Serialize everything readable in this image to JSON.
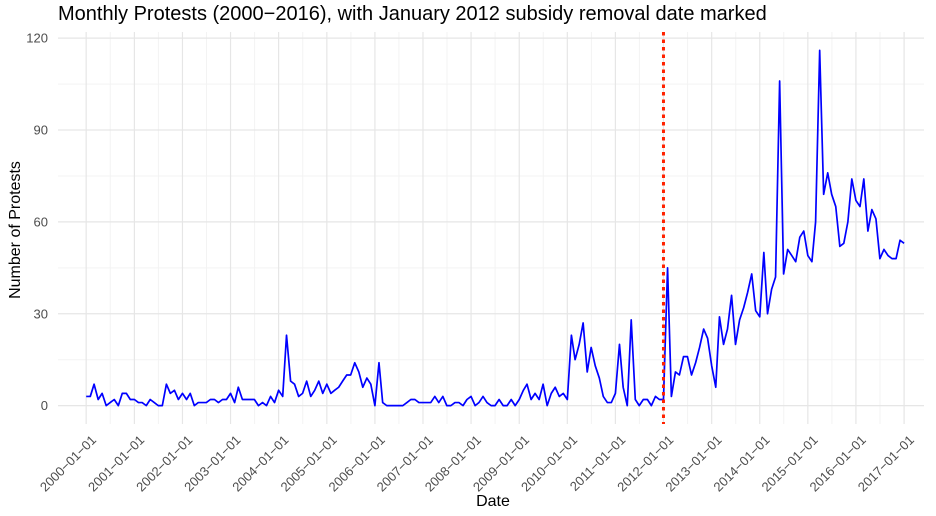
{
  "chart_data": {
    "type": "line",
    "title": "Monthly Protests (2000−2016), with January 2012 subsidy removal date marked",
    "xlabel": "Date",
    "ylabel": "Number of Protests",
    "x_ticks": [
      "2000−01−01",
      "2001−01−01",
      "2002−01−01",
      "2003−01−01",
      "2004−01−01",
      "2005−01−01",
      "2006−01−01",
      "2007−01−01",
      "2008−01−01",
      "2009−01−01",
      "2010−01−01",
      "2011−01−01",
      "2012−01−01",
      "2013−01−01",
      "2014−01−01",
      "2015−01−01",
      "2016−01−01",
      "2017−01−01"
    ],
    "y_ticks": [
      0,
      30,
      60,
      90,
      120
    ],
    "ylim": [
      -6,
      122
    ],
    "xlim": [
      "1999-06-01",
      "2017-06-01"
    ],
    "grid": true,
    "series": [
      {
        "color": "#0000ff",
        "points": [
          [
            "2000-01-01",
            3
          ],
          [
            "2000-02-01",
            3
          ],
          [
            "2000-03-01",
            7
          ],
          [
            "2000-04-01",
            2
          ],
          [
            "2000-05-01",
            4
          ],
          [
            "2000-06-01",
            0
          ],
          [
            "2000-07-01",
            1
          ],
          [
            "2000-08-01",
            2
          ],
          [
            "2000-09-01",
            0
          ],
          [
            "2000-10-01",
            4
          ],
          [
            "2000-11-01",
            4
          ],
          [
            "2000-12-01",
            2
          ],
          [
            "2001-01-01",
            2
          ],
          [
            "2001-02-01",
            1
          ],
          [
            "2001-03-01",
            1
          ],
          [
            "2001-04-01",
            0
          ],
          [
            "2001-05-01",
            2
          ],
          [
            "2001-06-01",
            1
          ],
          [
            "2001-07-01",
            0
          ],
          [
            "2001-08-01",
            0
          ],
          [
            "2001-09-01",
            7
          ],
          [
            "2001-10-01",
            4
          ],
          [
            "2001-11-01",
            5
          ],
          [
            "2001-12-01",
            2
          ],
          [
            "2002-01-01",
            4
          ],
          [
            "2002-02-01",
            2
          ],
          [
            "2002-03-01",
            4
          ],
          [
            "2002-04-01",
            0
          ],
          [
            "2002-05-01",
            1
          ],
          [
            "2002-06-01",
            1
          ],
          [
            "2002-07-01",
            1
          ],
          [
            "2002-08-01",
            2
          ],
          [
            "2002-09-01",
            2
          ],
          [
            "2002-10-01",
            1
          ],
          [
            "2002-11-01",
            2
          ],
          [
            "2002-12-01",
            2
          ],
          [
            "2003-01-01",
            4
          ],
          [
            "2003-02-01",
            1
          ],
          [
            "2003-03-01",
            6
          ],
          [
            "2003-04-01",
            2
          ],
          [
            "2003-05-01",
            2
          ],
          [
            "2003-06-01",
            2
          ],
          [
            "2003-07-01",
            2
          ],
          [
            "2003-08-01",
            0
          ],
          [
            "2003-09-01",
            1
          ],
          [
            "2003-10-01",
            0
          ],
          [
            "2003-11-01",
            3
          ],
          [
            "2003-12-01",
            1
          ],
          [
            "2004-01-01",
            5
          ],
          [
            "2004-02-01",
            3
          ],
          [
            "2004-03-01",
            23
          ],
          [
            "2004-04-01",
            8
          ],
          [
            "2004-05-01",
            7
          ],
          [
            "2004-06-01",
            3
          ],
          [
            "2004-07-01",
            4
          ],
          [
            "2004-08-01",
            8
          ],
          [
            "2004-09-01",
            3
          ],
          [
            "2004-10-01",
            5
          ],
          [
            "2004-11-01",
            8
          ],
          [
            "2004-12-01",
            4
          ],
          [
            "2005-01-01",
            7
          ],
          [
            "2005-02-01",
            4
          ],
          [
            "2005-03-01",
            5
          ],
          [
            "2005-04-01",
            6
          ],
          [
            "2005-05-01",
            8
          ],
          [
            "2005-06-01",
            10
          ],
          [
            "2005-07-01",
            10
          ],
          [
            "2005-08-01",
            14
          ],
          [
            "2005-09-01",
            11
          ],
          [
            "2005-10-01",
            6
          ],
          [
            "2005-11-01",
            9
          ],
          [
            "2005-12-01",
            7
          ],
          [
            "2006-01-01",
            0
          ],
          [
            "2006-02-01",
            14
          ],
          [
            "2006-03-01",
            1
          ],
          [
            "2006-04-01",
            0
          ],
          [
            "2006-05-01",
            0
          ],
          [
            "2006-06-01",
            0
          ],
          [
            "2006-07-01",
            0
          ],
          [
            "2006-08-01",
            0
          ],
          [
            "2006-09-01",
            1
          ],
          [
            "2006-10-01",
            2
          ],
          [
            "2006-11-01",
            2
          ],
          [
            "2006-12-01",
            1
          ],
          [
            "2007-01-01",
            1
          ],
          [
            "2007-02-01",
            1
          ],
          [
            "2007-03-01",
            1
          ],
          [
            "2007-04-01",
            3
          ],
          [
            "2007-05-01",
            1
          ],
          [
            "2007-06-01",
            3
          ],
          [
            "2007-07-01",
            0
          ],
          [
            "2007-08-01",
            0
          ],
          [
            "2007-09-01",
            1
          ],
          [
            "2007-10-01",
            1
          ],
          [
            "2007-11-01",
            0
          ],
          [
            "2007-12-01",
            2
          ],
          [
            "2008-01-01",
            3
          ],
          [
            "2008-02-01",
            0
          ],
          [
            "2008-03-01",
            1
          ],
          [
            "2008-04-01",
            3
          ],
          [
            "2008-05-01",
            1
          ],
          [
            "2008-06-01",
            0
          ],
          [
            "2008-07-01",
            0
          ],
          [
            "2008-08-01",
            2
          ],
          [
            "2008-09-01",
            0
          ],
          [
            "2008-10-01",
            0
          ],
          [
            "2008-11-01",
            2
          ],
          [
            "2008-12-01",
            0
          ],
          [
            "2009-01-01",
            2
          ],
          [
            "2009-02-01",
            5
          ],
          [
            "2009-03-01",
            7
          ],
          [
            "2009-04-01",
            2
          ],
          [
            "2009-05-01",
            4
          ],
          [
            "2009-06-01",
            2
          ],
          [
            "2009-07-01",
            7
          ],
          [
            "2009-08-01",
            0
          ],
          [
            "2009-09-01",
            4
          ],
          [
            "2009-10-01",
            6
          ],
          [
            "2009-11-01",
            3
          ],
          [
            "2009-12-01",
            4
          ],
          [
            "2010-01-01",
            2
          ],
          [
            "2010-02-01",
            23
          ],
          [
            "2010-03-01",
            15
          ],
          [
            "2010-04-01",
            20
          ],
          [
            "2010-05-01",
            27
          ],
          [
            "2010-06-01",
            11
          ],
          [
            "2010-07-01",
            19
          ],
          [
            "2010-08-01",
            13
          ],
          [
            "2010-09-01",
            9
          ],
          [
            "2010-10-01",
            3
          ],
          [
            "2010-11-01",
            1
          ],
          [
            "2010-12-01",
            1
          ],
          [
            "2011-01-01",
            4
          ],
          [
            "2011-02-01",
            20
          ],
          [
            "2011-03-01",
            6
          ],
          [
            "2011-04-01",
            0
          ],
          [
            "2011-05-01",
            28
          ],
          [
            "2011-06-01",
            2
          ],
          [
            "2011-07-01",
            0
          ],
          [
            "2011-08-01",
            2
          ],
          [
            "2011-09-01",
            2
          ],
          [
            "2011-10-01",
            0
          ],
          [
            "2011-11-01",
            3
          ],
          [
            "2011-12-01",
            2
          ],
          [
            "2012-01-01",
            2
          ],
          [
            "2012-02-01",
            45
          ],
          [
            "2012-03-01",
            3
          ],
          [
            "2012-04-01",
            11
          ],
          [
            "2012-05-01",
            10
          ],
          [
            "2012-06-01",
            16
          ],
          [
            "2012-07-01",
            16
          ],
          [
            "2012-08-01",
            10
          ],
          [
            "2012-09-01",
            14
          ],
          [
            "2012-10-01",
            19
          ],
          [
            "2012-11-01",
            25
          ],
          [
            "2012-12-01",
            22
          ],
          [
            "2013-01-01",
            13
          ],
          [
            "2013-02-01",
            6
          ],
          [
            "2013-03-01",
            29
          ],
          [
            "2013-04-01",
            20
          ],
          [
            "2013-05-01",
            25
          ],
          [
            "2013-06-01",
            36
          ],
          [
            "2013-07-01",
            20
          ],
          [
            "2013-08-01",
            28
          ],
          [
            "2013-09-01",
            32
          ],
          [
            "2013-10-01",
            37
          ],
          [
            "2013-11-01",
            43
          ],
          [
            "2013-12-01",
            31
          ],
          [
            "2014-01-01",
            29
          ],
          [
            "2014-02-01",
            50
          ],
          [
            "2014-03-01",
            30
          ],
          [
            "2014-04-01",
            38
          ],
          [
            "2014-05-01",
            42
          ],
          [
            "2014-06-01",
            106
          ],
          [
            "2014-07-01",
            43
          ],
          [
            "2014-08-01",
            51
          ],
          [
            "2014-09-01",
            49
          ],
          [
            "2014-10-01",
            47
          ],
          [
            "2014-11-01",
            55
          ],
          [
            "2014-12-01",
            57
          ],
          [
            "2015-01-01",
            49
          ],
          [
            "2015-02-01",
            47
          ],
          [
            "2015-03-01",
            60
          ],
          [
            "2015-04-01",
            116
          ],
          [
            "2015-05-01",
            69
          ],
          [
            "2015-06-01",
            76
          ],
          [
            "2015-07-01",
            69
          ],
          [
            "2015-08-01",
            65
          ],
          [
            "2015-09-01",
            52
          ],
          [
            "2015-10-01",
            53
          ],
          [
            "2015-11-01",
            60
          ],
          [
            "2015-12-01",
            74
          ],
          [
            "2016-01-01",
            67
          ],
          [
            "2016-02-01",
            65
          ],
          [
            "2016-03-01",
            74
          ],
          [
            "2016-04-01",
            57
          ],
          [
            "2016-05-01",
            64
          ],
          [
            "2016-06-01",
            61
          ],
          [
            "2016-07-01",
            48
          ],
          [
            "2016-08-01",
            51
          ],
          [
            "2016-09-01",
            49
          ],
          [
            "2016-10-01",
            48
          ],
          [
            "2016-11-01",
            48
          ],
          [
            "2016-12-01",
            54
          ],
          [
            "2017-01-01",
            53
          ]
        ]
      }
    ],
    "annotations": [
      {
        "type": "vline",
        "x": "2012-01-01",
        "color": "#ff2200",
        "style": "dotted"
      }
    ]
  }
}
